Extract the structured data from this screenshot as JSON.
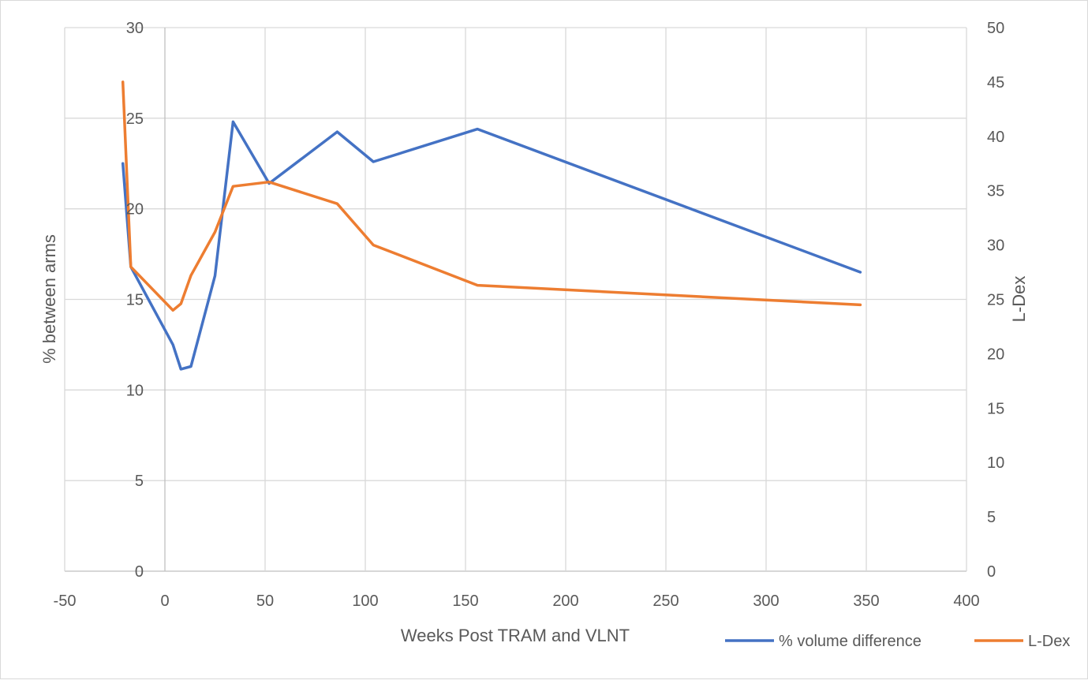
{
  "chart_data": {
    "type": "line",
    "title": "",
    "xlabel": "Weeks Post TRAM and VLNT",
    "ylabel": "% between arms",
    "y2label": "L-Dex",
    "xlim": [
      -50,
      400
    ],
    "ylim": [
      0,
      30
    ],
    "y2lim": [
      0,
      50
    ],
    "grid": true,
    "legend_position": "bottom-right",
    "x_ticks": [
      "-50",
      "0",
      "50",
      "100",
      "150",
      "200",
      "250",
      "300",
      "350",
      "400"
    ],
    "y_ticks": [
      "0",
      "5",
      "10",
      "15",
      "20",
      "25",
      "30"
    ],
    "y2_ticks": [
      "0",
      "5",
      "10",
      "15",
      "20",
      "25",
      "30",
      "35",
      "40",
      "45",
      "50"
    ],
    "series": [
      {
        "name": "% volume difference",
        "axis": "left",
        "color": "#4472C4",
        "x": [
          -21,
          -17,
          4,
          8,
          13,
          25,
          34,
          52,
          86,
          104,
          156,
          347
        ],
        "y": [
          22.5,
          16.8,
          12.5,
          11.15,
          11.3,
          16.3,
          24.8,
          21.4,
          24.25,
          22.6,
          24.4,
          16.5
        ]
      },
      {
        "name": "L-Dex",
        "axis": "right",
        "color": "#ED7D31",
        "x": [
          -21,
          -17,
          4,
          8,
          13,
          25,
          34,
          52,
          86,
          104,
          156,
          347
        ],
        "y": [
          45,
          28,
          24,
          24.6,
          27.2,
          31.2,
          35.4,
          35.8,
          33.8,
          30,
          26.3,
          24.5
        ]
      }
    ]
  }
}
